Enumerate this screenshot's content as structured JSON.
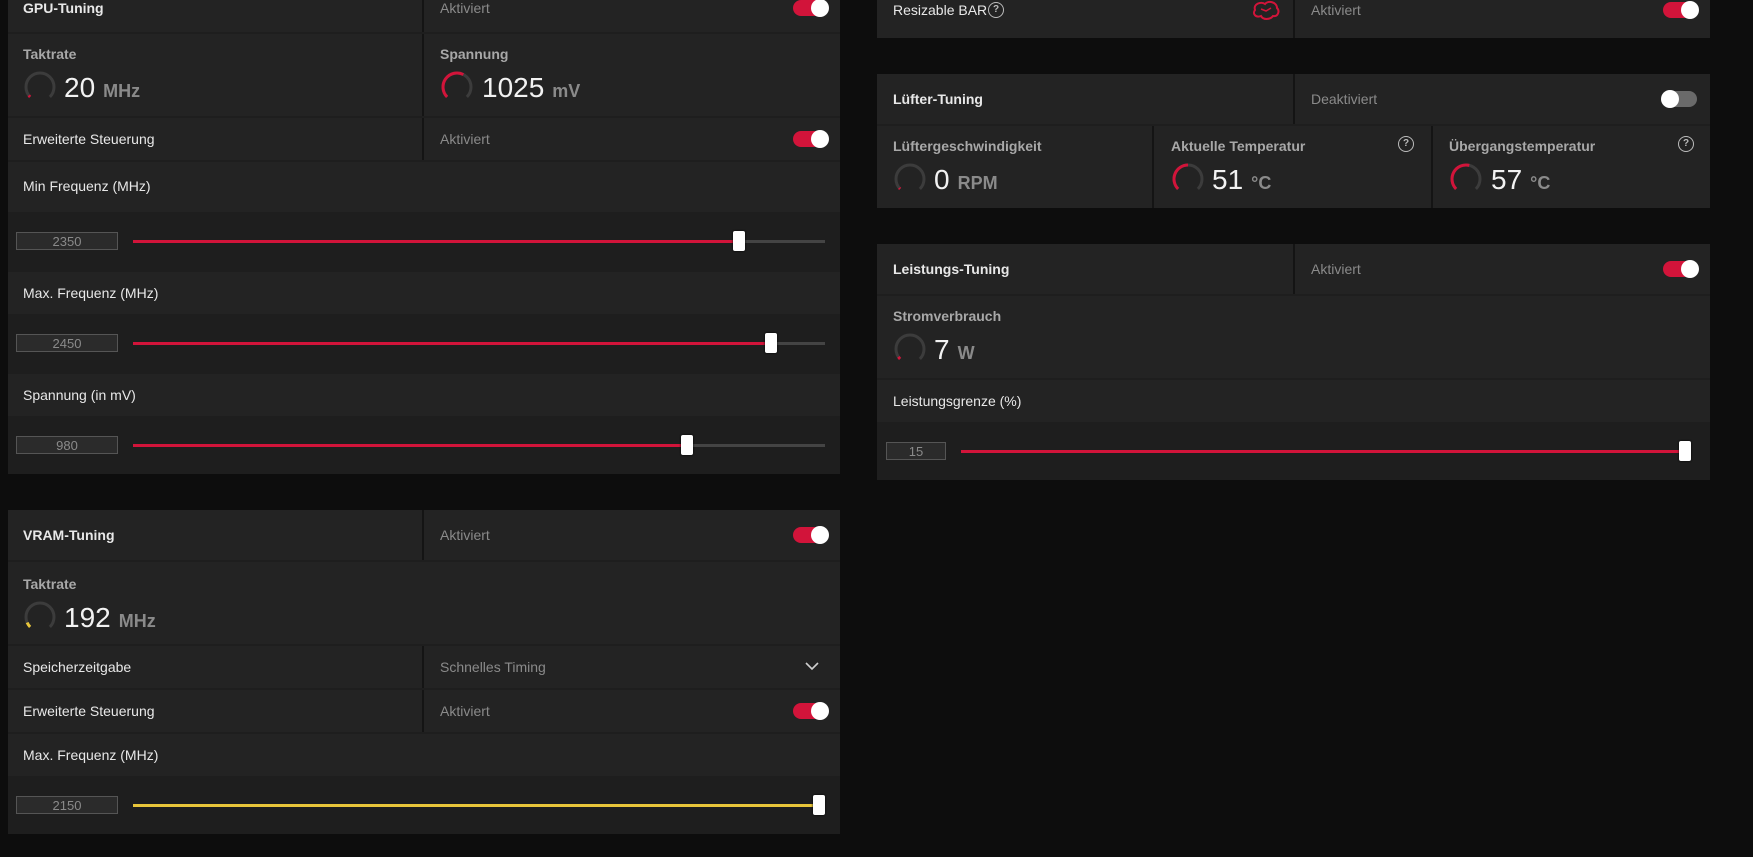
{
  "colors": {
    "accent": "#d2143a",
    "vram_accent": "#e8c53a",
    "panel": "#1e1e1e",
    "background": "#0d0d0d"
  },
  "gpu_tuning": {
    "title": "GPU-Tuning",
    "status": "Aktiviert",
    "toggle_on": true,
    "clock": {
      "title": "Taktrate",
      "value": "20",
      "unit": "MHz",
      "gauge_fraction": 0.03
    },
    "voltage": {
      "title": "Spannung",
      "value": "1025",
      "unit": "mV",
      "gauge_fraction": 0.6
    },
    "advanced": {
      "label": "Erweiterte Steuerung",
      "status": "Aktiviert",
      "toggle_on": true
    },
    "min_freq": {
      "label": "Min Frequenz (MHz)",
      "value": "2350",
      "fraction": 0.875
    },
    "max_freq": {
      "label": "Max. Frequenz (MHz)",
      "value": "2450",
      "fraction": 0.922
    },
    "voltage_mv": {
      "label": "Spannung (in mV)",
      "value": "980",
      "fraction": 0.8
    }
  },
  "vram_tuning": {
    "title": "VRAM-Tuning",
    "status": "Aktiviert",
    "toggle_on": true,
    "clock": {
      "title": "Taktrate",
      "value": "192",
      "unit": "MHz",
      "gauge_fraction": 0.08
    },
    "timing": {
      "label": "Speicherzeitgabe",
      "value": "Schnelles Timing"
    },
    "advanced": {
      "label": "Erweiterte Steuerung",
      "status": "Aktiviert",
      "toggle_on": true
    },
    "max_freq": {
      "label": "Max. Frequenz (MHz)",
      "value": "2150",
      "fraction": 1.0
    }
  },
  "resizable_bar": {
    "label": "Resizable BAR",
    "status": "Aktiviert",
    "toggle_on": true,
    "icon": "brain-icon"
  },
  "fan_tuning": {
    "title": "Lüfter-Tuning",
    "status": "Deaktiviert",
    "toggle_on": false,
    "fan_speed": {
      "title": "Lüftergeschwindigkeit",
      "value": "0",
      "unit": "RPM",
      "gauge_fraction": 0.0
    },
    "current_temp": {
      "title": "Aktuelle Temperatur",
      "value": "51",
      "unit": "°C",
      "gauge_fraction": 0.5
    },
    "junction_temp": {
      "title": "Übergangstemperatur",
      "value": "57",
      "unit": "°C",
      "gauge_fraction": 0.55
    }
  },
  "power_tuning": {
    "title": "Leistungs-Tuning",
    "status": "Aktiviert",
    "toggle_on": true,
    "power": {
      "title": "Stromverbrauch",
      "value": "7",
      "unit": "W",
      "gauge_fraction": 0.04
    },
    "limit": {
      "label": "Leistungsgrenze (%)",
      "value": "15",
      "fraction": 1.0
    }
  }
}
